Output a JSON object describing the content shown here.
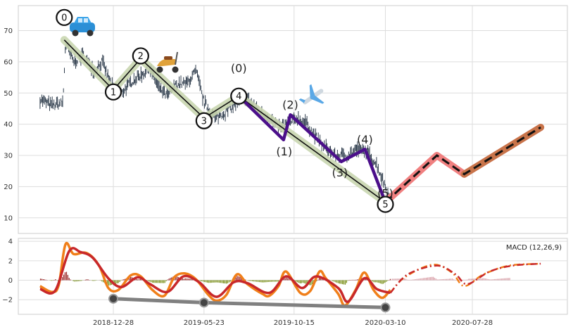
{
  "chart_data": [
    {
      "type": "line",
      "title": "",
      "xlabel": "",
      "ylabel": "",
      "ylim": [
        5,
        78
      ],
      "yticks": [
        10,
        20,
        30,
        40,
        50,
        60,
        70
      ],
      "x_ticks": [
        "2018-12-28",
        "2019-05-23",
        "2019-10-15",
        "2020-03-10",
        "2020-07-28"
      ],
      "x_range": [
        "2018-07-28",
        "2020-12-28"
      ],
      "grid": true,
      "price_series": {
        "name": "",
        "style": "ohlc-bars",
        "color": "#2f3d4d",
        "anchors": [
          [
            "2018-09-01",
            48
          ],
          [
            "2018-09-20",
            46
          ],
          [
            "2018-10-08",
            47
          ],
          [
            "2018-10-12",
            66
          ],
          [
            "2018-10-25",
            60
          ],
          [
            "2018-11-10",
            62
          ],
          [
            "2018-11-28",
            57
          ],
          [
            "2018-12-10",
            60
          ],
          [
            "2018-12-28",
            51
          ],
          [
            "2019-01-10",
            50
          ],
          [
            "2019-01-28",
            54
          ],
          [
            "2019-02-12",
            56
          ],
          [
            "2019-02-25",
            58
          ],
          [
            "2019-03-10",
            52
          ],
          [
            "2019-03-25",
            49
          ],
          [
            "2019-04-10",
            53
          ],
          [
            "2019-04-25",
            53
          ],
          [
            "2019-05-10",
            57
          ],
          [
            "2019-05-23",
            47
          ],
          [
            "2019-06-10",
            42
          ],
          [
            "2019-06-28",
            44
          ],
          [
            "2019-07-15",
            47
          ],
          [
            "2019-08-01",
            48
          ],
          [
            "2019-08-20",
            44
          ],
          [
            "2019-09-05",
            42
          ],
          [
            "2019-09-20",
            39
          ],
          [
            "2019-10-05",
            40
          ],
          [
            "2019-10-20",
            42
          ],
          [
            "2019-11-05",
            40
          ],
          [
            "2019-11-15",
            37
          ],
          [
            "2019-12-01",
            33
          ],
          [
            "2019-12-20",
            30
          ],
          [
            "2020-01-10",
            30
          ],
          [
            "2020-01-25",
            32
          ],
          [
            "2020-02-10",
            31
          ],
          [
            "2020-02-25",
            27
          ],
          [
            "2020-03-10",
            20
          ],
          [
            "2020-03-18",
            16
          ]
        ]
      },
      "waves": {
        "primary": {
          "color": "#111111",
          "halo": "#c9d6b0",
          "points": [
            [
              "2018-10-10",
              67
            ],
            [
              "2018-12-28",
              51
            ],
            [
              "2019-02-10",
              61
            ],
            [
              "2019-05-23",
              42
            ],
            [
              "2019-07-18",
              49
            ],
            [
              "2020-03-10",
              15
            ]
          ],
          "labels": [
            "0",
            "1",
            "2",
            "3",
            "4",
            "5"
          ]
        },
        "sub": {
          "color": "#4b0f8a",
          "points": [
            [
              "2019-07-18",
              49
            ],
            [
              "2019-09-28",
              35
            ],
            [
              "2019-10-09",
              43
            ],
            [
              "2019-12-30",
              28
            ],
            [
              "2020-02-06",
              32
            ],
            [
              "2020-03-10",
              15
            ]
          ],
          "labels": [
            "(0)",
            "(1)",
            "(2)",
            "(3)",
            "(4)",
            "(5)"
          ]
        },
        "projection": {
          "color": "#111111",
          "halo": "#f08080",
          "halo2": "#c8744a",
          "points": [
            [
              "2020-03-10",
              15
            ],
            [
              "2020-06-01",
              30
            ],
            [
              "2020-07-15",
              24
            ],
            [
              "2020-11-15",
              39
            ]
          ]
        }
      },
      "icons": [
        "car-emoji",
        "scooter-emoji",
        "airplane-emoji"
      ]
    },
    {
      "type": "bar",
      "title": "",
      "legend": "MACD (12,26,9)",
      "legend_placement": "top-right",
      "ylim": [
        -3.5,
        4.3
      ],
      "yticks": [
        -2,
        0,
        2,
        4
      ],
      "histogram_colors": {
        "positive": "#9b2a2a",
        "negative": "#7a8f1a",
        "projected": "#d9a0a8"
      },
      "macd_line": {
        "name": "",
        "color": "#f07f1a",
        "points": [
          [
            "2018-09-01",
            -0.6
          ],
          [
            "2018-09-20",
            -1.2
          ],
          [
            "2018-10-01",
            -0.5
          ],
          [
            "2018-10-12",
            3.7
          ],
          [
            "2018-10-25",
            2.7
          ],
          [
            "2018-11-15",
            2.8
          ],
          [
            "2018-12-05",
            1.5
          ],
          [
            "2018-12-20",
            -0.8
          ],
          [
            "2019-01-05",
            -1.0
          ],
          [
            "2019-01-25",
            0.5
          ],
          [
            "2019-02-10",
            0.4
          ],
          [
            "2019-03-01",
            -1.0
          ],
          [
            "2019-03-20",
            -1.6
          ],
          [
            "2019-04-05",
            0.3
          ],
          [
            "2019-04-22",
            0.7
          ],
          [
            "2019-05-10",
            0.1
          ],
          [
            "2019-05-30",
            -1.5
          ],
          [
            "2019-06-12",
            -2.1
          ],
          [
            "2019-06-28",
            -1.5
          ],
          [
            "2019-07-15",
            0.6
          ],
          [
            "2019-08-01",
            -0.4
          ],
          [
            "2019-08-25",
            -1.4
          ],
          [
            "2019-09-05",
            -1.6
          ],
          [
            "2019-09-20",
            -0.6
          ],
          [
            "2019-10-02",
            0.9
          ],
          [
            "2019-10-25",
            -1.3
          ],
          [
            "2019-11-10",
            -1.1
          ],
          [
            "2019-11-25",
            0.9
          ],
          [
            "2019-12-05",
            0.2
          ],
          [
            "2019-12-25",
            -1.4
          ],
          [
            "2020-01-05",
            -2.6
          ],
          [
            "2020-01-22",
            -1.0
          ],
          [
            "2020-02-05",
            0.8
          ],
          [
            "2020-02-20",
            -1.0
          ],
          [
            "2020-03-05",
            -1.8
          ],
          [
            "2020-03-18",
            -1.0
          ]
        ]
      },
      "signal_line": {
        "name": "",
        "color": "#c8282a",
        "points": [
          [
            "2018-09-01",
            -0.9
          ],
          [
            "2018-09-25",
            -1.1
          ],
          [
            "2018-10-18",
            3.0
          ],
          [
            "2018-11-05",
            2.9
          ],
          [
            "2018-11-25",
            2.3
          ],
          [
            "2018-12-20",
            0.2
          ],
          [
            "2019-01-10",
            -0.7
          ],
          [
            "2019-02-05",
            0.3
          ],
          [
            "2019-02-25",
            -0.4
          ],
          [
            "2019-03-25",
            -1.2
          ],
          [
            "2019-04-20",
            0.4
          ],
          [
            "2019-05-15",
            -0.2
          ],
          [
            "2019-06-12",
            -1.7
          ],
          [
            "2019-07-10",
            -0.2
          ],
          [
            "2019-08-01",
            -0.3
          ],
          [
            "2019-09-05",
            -1.3
          ],
          [
            "2019-10-02",
            0.4
          ],
          [
            "2019-10-28",
            -0.8
          ],
          [
            "2019-11-20",
            0.4
          ],
          [
            "2019-12-25",
            -0.8
          ],
          [
            "2020-01-10",
            -2.2
          ],
          [
            "2020-02-05",
            0.2
          ],
          [
            "2020-02-25",
            -0.9
          ],
          [
            "2020-03-18",
            -1.3
          ]
        ]
      },
      "projected_macd": {
        "color": "#f07f1a",
        "points": [
          [
            "2020-03-18",
            -1.3
          ],
          [
            "2020-04-10",
            0.3
          ],
          [
            "2020-05-25",
            1.6
          ],
          [
            "2020-06-25",
            0.8
          ],
          [
            "2020-07-15",
            -0.6
          ],
          [
            "2020-08-15",
            0.6
          ],
          [
            "2020-09-25",
            1.5
          ],
          [
            "2020-11-15",
            1.7
          ]
        ]
      },
      "projected_signal": {
        "color": "#c8282a",
        "points": [
          [
            "2020-03-18",
            -1.3
          ],
          [
            "2020-04-15",
            0.6
          ],
          [
            "2020-06-01",
            1.5
          ],
          [
            "2020-07-01",
            0.6
          ],
          [
            "2020-07-20",
            -0.4
          ],
          [
            "2020-08-25",
            0.9
          ],
          [
            "2020-10-01",
            1.5
          ],
          [
            "2020-11-15",
            1.7
          ]
        ]
      },
      "divergence_line": {
        "color": "#808080",
        "points": [
          [
            "2018-12-28",
            -1.9
          ],
          [
            "2019-05-23",
            -2.3
          ],
          [
            "2020-03-10",
            -2.8
          ]
        ]
      }
    }
  ]
}
